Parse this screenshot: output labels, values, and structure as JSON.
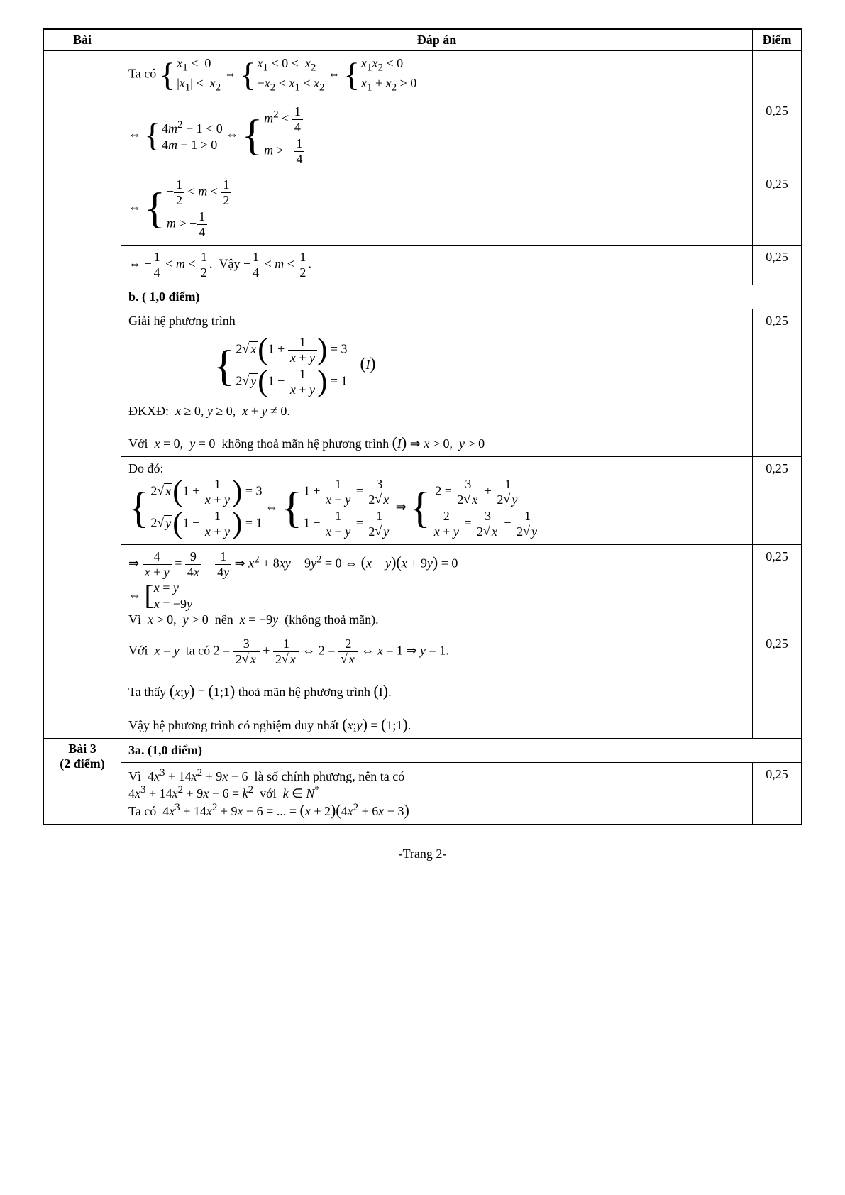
{
  "header": {
    "bai": "Bài",
    "dapan": "Đáp án",
    "diem": "Điểm"
  },
  "rows": [
    {
      "ans_html": "Ta có <span class='brace'>{</span><span class='sys'><span class='row'><i>x</i><sub>1</sub> &lt; &nbsp;0</span><span class='row'>|<i>x</i><sub>1</sub>| &lt; &nbsp;<i>x</i><sub>2</sub></span></span> ⇔ <span class='brace'>{</span><span class='sys'><span class='row'><i>x</i><sub>1</sub> &lt; 0 &lt; &nbsp;<i>x</i><sub>2</sub></span><span class='row'>−<i>x</i><sub>2</sub> &lt; <i>x</i><sub>1</sub> &lt; <i>x</i><sub>2</sub></span></span> ⇔ <span class='brace'>{</span><span class='sys'><span class='row'><i>x</i><sub>1</sub><i>x</i><sub>2</sub> &lt; 0</span><span class='row'><i>x</i><sub>1</sub> + <i>x</i><sub>2</sub> &gt; 0</span></span>",
      "diem": ""
    },
    {
      "ans_html": "⇔ <span class='brace'>{</span><span class='sys'><span class='row'>4<i>m</i><sup>2</sup> − 1 &lt; 0</span><span class='row'>4<i>m</i> + 1 &gt; 0</span></span> ⇔ <span class='brace3'>{</span><span class='sys'><span class='row'><i>m</i><sup>2</sup> &lt; <span class='frac'><span class='n'>1</span><span class='d'>4</span></span></span><span class='row'><i>m</i> &gt; −<span class='frac'><span class='n'>1</span><span class='d'>4</span></span></span></span>",
      "diem": "0,25"
    },
    {
      "ans_html": "⇔ <span class='brace3'>{</span><span class='sys'><span class='row'>−<span class='frac'><span class='n'>1</span><span class='d'>2</span></span> &lt; <i>m</i> &lt; <span class='frac'><span class='n'>1</span><span class='d'>2</span></span></span><span class='row'><i>m</i> &gt; −<span class='frac'><span class='n'>1</span><span class='d'>4</span></span></span></span>",
      "diem": "0,25"
    },
    {
      "ans_html": "⇔ −<span class='frac'><span class='n'>1</span><span class='d'>4</span></span> &lt; <i>m</i> &lt; <span class='frac'><span class='n'>1</span><span class='d'>2</span></span>. &nbsp;Vậy −<span class='frac'><span class='n'>1</span><span class='d'>4</span></span> &lt; <i>m</i> &lt; <span class='frac'><span class='n'>1</span><span class='d'>2</span></span>.",
      "diem": "0,25"
    },
    {
      "subheader": "b. ( 1,0 điểm)"
    },
    {
      "ans_html": "Giải hệ phương trình<br><div style='margin:8px 0 8px 120px;'><span class='brace3'>{</span><span class='sys'><span class='row'>2<span class='sqrtsign'>√</span><span class='sqrt'><i>x</i></span><span class='lparen-big'>(</span>1 + <span class='frac'><span class='n'>1</span><span class='d'><i>x</i> + <i>y</i></span></span><span class='rparen-big'>)</span> = 3</span><span class='row'>2<span class='sqrtsign'>√</span><span class='sqrt'><i>y</i></span><span class='lparen-big'>(</span>1 − <span class='frac'><span class='n'>1</span><span class='d'><i>x</i> + <i>y</i></span></span><span class='rparen-big'>)</span> = 1</span></span>&nbsp;&nbsp;&nbsp;&nbsp;<span style='font-size:24px'>(</span><i>I</i><span style='font-size:24px'>)</span></div>ĐKXĐ: &nbsp;<i>x</i> ≥ 0, <i>y</i> ≥ 0, &nbsp;<i>x</i> + <i>y</i> ≠ 0.<br><br>Với &nbsp;<i>x</i> = 0, &nbsp;<i>y</i> = 0 &nbsp;không thoả mãn hệ phương trình <span style='font-size:22px'>(</span><i>I</i><span style='font-size:22px'>)</span> ⇒ <i>x</i> &gt; 0, &nbsp;<i>y</i> &gt; 0",
      "diem": "0,25"
    },
    {
      "ans_html": "Do đó:<br><span class='brace3'>{</span><span class='sys'><span class='row'>2<span class='sqrtsign'>√</span><span class='sqrt'><i>x</i></span><span class='lparen-big'>(</span>1 + <span class='frac'><span class='n'>1</span><span class='d'><i>x</i> + <i>y</i></span></span><span class='rparen-big'>)</span> = 3</span><span class='row'>2<span class='sqrtsign'>√</span><span class='sqrt'><i>y</i></span><span class='lparen-big'>(</span>1 − <span class='frac'><span class='n'>1</span><span class='d'><i>x</i> + <i>y</i></span></span><span class='rparen-big'>)</span> = 1</span></span> ⇔ <span class='brace3'>{</span><span class='sys'><span class='row'>1 + <span class='frac'><span class='n'>1</span><span class='d'><i>x</i> + <i>y</i></span></span> = <span class='frac'><span class='n'>3</span><span class='d'>2<span class='sqrtsign'>√</span><span class='sqrt'><i>x</i></span></span></span></span><span class='row'>1 − <span class='frac'><span class='n'>1</span><span class='d'><i>x</i> + <i>y</i></span></span> = <span class='frac'><span class='n'>1</span><span class='d'>2<span class='sqrtsign'>√</span><span class='sqrt'><i>y</i></span></span></span></span></span> ⇒ <span class='brace3'>{</span><span class='sys'><span class='row'>&nbsp;2 = <span class='frac'><span class='n'>3</span><span class='d'>2<span class='sqrtsign'>√</span><span class='sqrt'><i>x</i></span></span></span> + <span class='frac'><span class='n'>1</span><span class='d'>2<span class='sqrtsign'>√</span><span class='sqrt'><i>y</i></span></span></span></span><span class='row'><span class='frac'><span class='n'>2</span><span class='d'><i>x</i> + <i>y</i></span></span> = <span class='frac'><span class='n'>3</span><span class='d'>2<span class='sqrtsign'>√</span><span class='sqrt'><i>x</i></span></span></span> − <span class='frac'><span class='n'>1</span><span class='d'>2<span class='sqrtsign'>√</span><span class='sqrt'><i>y</i></span></span></span></span></span>",
      "diem": "0,25"
    },
    {
      "ans_html": "⇒ <span class='frac'><span class='n'>4</span><span class='d'><i>x</i> + <i>y</i></span></span> = <span class='frac'><span class='n'>9</span><span class='d'>4<i>x</i></span></span> − <span class='frac'><span class='n'>1</span><span class='d'>4<i>y</i></span></span> ⇒ <i>x</i><sup>2</sup> + 8<i>xy</i> − 9<i>y</i><sup>2</sup> = 0 ⇔ <span style='font-size:22px'>(</span><i>x</i> − <i>y</i><span style='font-size:22px'>)(</span><i>x</i> + 9<i>y</i><span style='font-size:22px'>)</span> = 0<br>⇔ <span class='bracket-open'>[</span><span class='sys'><span class='row'><i>x</i> = <i>y</i></span><span class='row'><i>x</i> = −9<i>y</i></span></span><br>Vì &nbsp;<i>x</i> &gt; 0, &nbsp;<i>y</i> &gt; 0 &nbsp;nên &nbsp;<i>x</i> = −9<i>y</i> &nbsp;(không thoả mãn).",
      "diem": "0,25"
    },
    {
      "ans_html": "Với &nbsp;<i>x</i> = <i>y</i> &nbsp;ta có 2 = <span class='frac'><span class='n'>3</span><span class='d'>2<span class='sqrtsign'>√</span><span class='sqrt'><i>x</i></span></span></span> + <span class='frac'><span class='n'>1</span><span class='d'>2<span class='sqrtsign'>√</span><span class='sqrt'><i>x</i></span></span></span> ⇔ 2 = <span class='frac'><span class='n'>2</span><span class='d'><span class='sqrtsign'>√</span><span class='sqrt'><i>x</i></span></span></span> ⇔ <i>x</i> = 1 ⇒ <i>y</i> = 1.<br><br>Ta thấy <span style='font-size:22px'>(</span><i>x</i>;<i>y</i><span style='font-size:22px'>)</span> = <span style='font-size:22px'>(</span>1;1<span style='font-size:22px'>)</span> thoả mãn hệ phương trình <span style='font-size:22px'>(</span>I<span style='font-size:22px'>)</span>.<br><br>Vậy hệ phương trình có nghiệm duy nhất <span style='font-size:22px'>(</span><i>x</i>;<i>y</i><span style='font-size:22px'>)</span> = <span style='font-size:22px'>(</span>1;1<span style='font-size:22px'>)</span>.",
      "diem": "0,25"
    },
    {
      "subheader": "3a. (1,0 điểm)",
      "newbai": {
        "title": "Bài 3",
        "sub": "(2 điểm)"
      }
    },
    {
      "ans_html": "Vì &nbsp;4<i>x</i><sup>3</sup> + 14<i>x</i><sup>2</sup> + 9<i>x</i> − 6 &nbsp;là số chính phương, nên ta có<br>4<i>x</i><sup>3</sup> + 14<i>x</i><sup>2</sup> + 9<i>x</i> − 6 = <i>k</i><sup>2</sup> &nbsp;với &nbsp;<i>k</i> ∈ <i>N</i><sup>*</sup><br>Ta có &nbsp;4<i>x</i><sup>3</sup> + 14<i>x</i><sup>2</sup> + 9<i>x</i> − 6 = ... = <span style='font-size:22px'>(</span><i>x</i> + 2<span style='font-size:22px'>)(</span>4<i>x</i><sup>2</sup> + 6<i>x</i> − 3<span style='font-size:22px'>)</span>",
      "diem": "0,25"
    }
  ],
  "footer": "-Trang 2-"
}
